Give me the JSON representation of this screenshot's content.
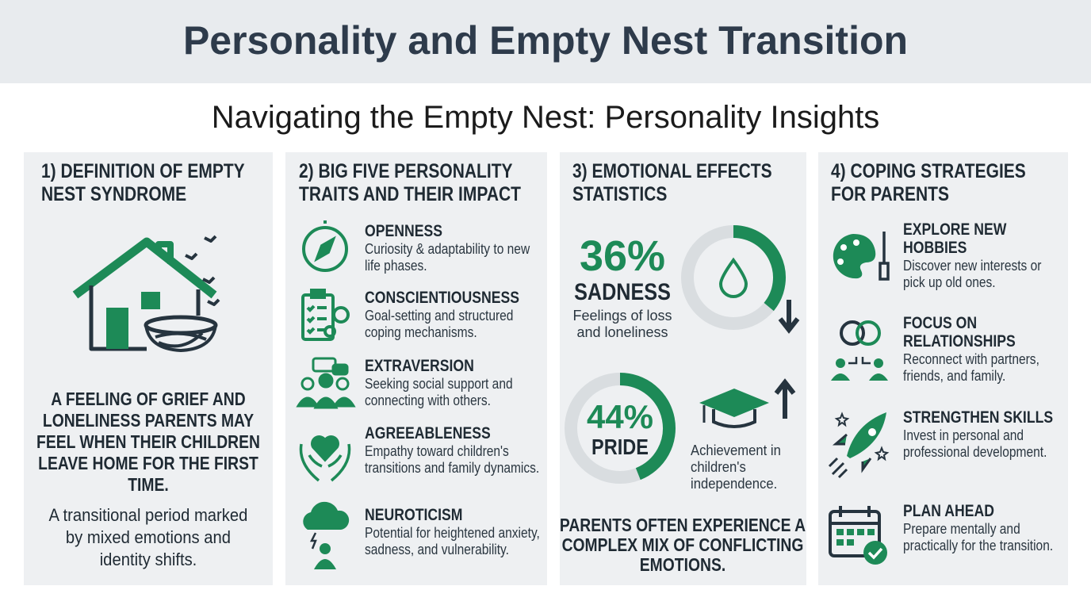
{
  "header": {
    "title": "Personality and Empty Nest Transition",
    "subtitle": "Navigating the Empty Nest: Personality Insights"
  },
  "panels": [
    {
      "heading": "1) DEFINITION OF EMPTY NEST SYNDROME",
      "definition": "A FEELING OF GRIEF AND LONELINESS PARENTS MAY FEEL WHEN THEIR CHILDREN LEAVE HOME FOR THE FIRST TIME.",
      "note": "A transitional period marked by mixed emotions and identity shifts."
    },
    {
      "heading": "2) BIG FIVE PERSONALITY TRAITS AND THEIR IMPACT",
      "items": [
        {
          "name": "OPENNESS",
          "text": "Curiosity & adaptability to new life phases."
        },
        {
          "name": "CONSCIENTIOUSNESS",
          "text": "Goal-setting and structured coping mechanisms."
        },
        {
          "name": "EXTRAVERSION",
          "text": "Seeking social support and connecting with others."
        },
        {
          "name": "AGREEABLENESS",
          "text": "Empathy toward children's transitions and family dynamics."
        },
        {
          "name": "NEUROTICISM",
          "text": "Potential for heightened anxiety, sadness, and vulnerability."
        }
      ]
    },
    {
      "heading": "3) EMOTIONAL EFFECTS STATISTICS",
      "stats": [
        {
          "value": 36,
          "label": "36%",
          "name": "SADNESS",
          "text": "Feelings of loss and loneliness"
        },
        {
          "value": 44,
          "label": "44%",
          "name": "PRIDE",
          "text": "Achievement in children's independence."
        }
      ],
      "summary": "PARENTS OFTEN EXPERIENCE A COMPLEX MIX OF CONFLICTING EMOTIONS."
    },
    {
      "heading": "4) COPING STRATEGIES FOR PARENTS",
      "items": [
        {
          "name": "EXPLORE NEW HOBBIES",
          "text": "Discover new interests or pick up old ones."
        },
        {
          "name": "FOCUS ON RELATIONSHIPS",
          "text": "Reconnect with partners, friends, and family."
        },
        {
          "name": "STRENGTHEN SKILLS",
          "text": "Invest in personal and professional development."
        },
        {
          "name": "PLAN AHEAD",
          "text": "Prepare mentally and practically for the transition."
        }
      ]
    }
  ]
}
